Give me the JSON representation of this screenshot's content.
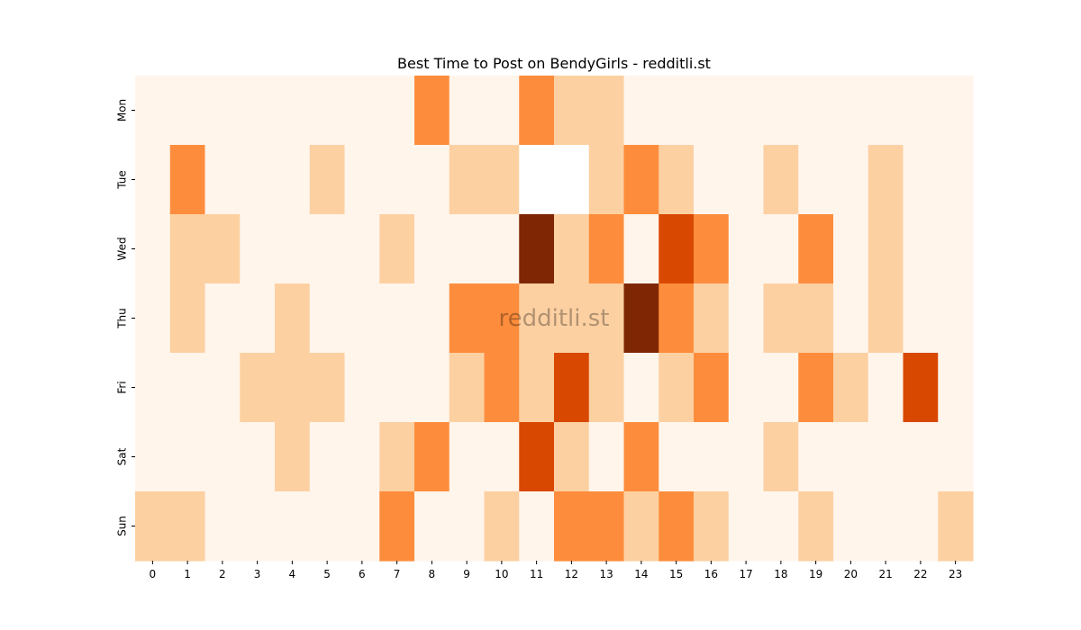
{
  "chart_data": {
    "type": "heatmap",
    "title": "Best Time to Post on BendyGirls - redditli.st",
    "xlabel": "",
    "ylabel": "",
    "x_categories": [
      "0",
      "1",
      "2",
      "3",
      "4",
      "5",
      "6",
      "7",
      "8",
      "9",
      "10",
      "11",
      "12",
      "13",
      "14",
      "15",
      "16",
      "17",
      "18",
      "19",
      "20",
      "21",
      "22",
      "23"
    ],
    "y_categories": [
      "Mon",
      "Tue",
      "Wed",
      "Thu",
      "Fri",
      "Sat",
      "Sun"
    ],
    "values": [
      [
        0,
        0,
        0,
        0,
        0,
        0,
        0,
        0,
        2,
        0,
        0,
        2,
        1,
        1,
        0,
        0,
        0,
        0,
        0,
        0,
        0,
        0,
        0,
        0
      ],
      [
        0,
        2,
        0,
        0,
        0,
        1,
        0,
        0,
        0,
        1,
        1,
        -1,
        -1,
        1,
        2,
        1,
        0,
        0,
        1,
        0,
        0,
        1,
        0,
        0
      ],
      [
        0,
        1,
        1,
        0,
        0,
        0,
        0,
        1,
        0,
        0,
        0,
        4,
        1,
        2,
        0,
        3,
        2,
        0,
        0,
        2,
        0,
        1,
        0,
        0
      ],
      [
        0,
        1,
        0,
        0,
        1,
        0,
        0,
        0,
        0,
        2,
        2,
        1,
        1,
        1,
        4,
        2,
        1,
        0,
        1,
        1,
        0,
        1,
        0,
        0
      ],
      [
        0,
        0,
        0,
        1,
        1,
        1,
        0,
        0,
        0,
        1,
        2,
        1,
        3,
        1,
        0,
        1,
        2,
        0,
        0,
        2,
        1,
        0,
        3,
        0
      ],
      [
        0,
        0,
        0,
        0,
        1,
        0,
        0,
        1,
        2,
        0,
        0,
        3,
        1,
        0,
        2,
        0,
        0,
        0,
        1,
        0,
        0,
        0,
        0,
        0
      ],
      [
        1,
        1,
        0,
        0,
        0,
        0,
        0,
        2,
        0,
        0,
        1,
        0,
        2,
        2,
        1,
        2,
        1,
        0,
        0,
        1,
        0,
        0,
        0,
        1
      ]
    ],
    "value_note": "levels read from color intensity; -1 = empty (no data) cell",
    "colormap": {
      "-1": "#ffffff",
      "0": "#fff5eb",
      "1": "#fdd0a2",
      "2": "#fd8d3c",
      "3": "#d94801",
      "4": "#7f2704"
    },
    "colorbar": false,
    "grid": false,
    "watermark": "redditli.st"
  }
}
